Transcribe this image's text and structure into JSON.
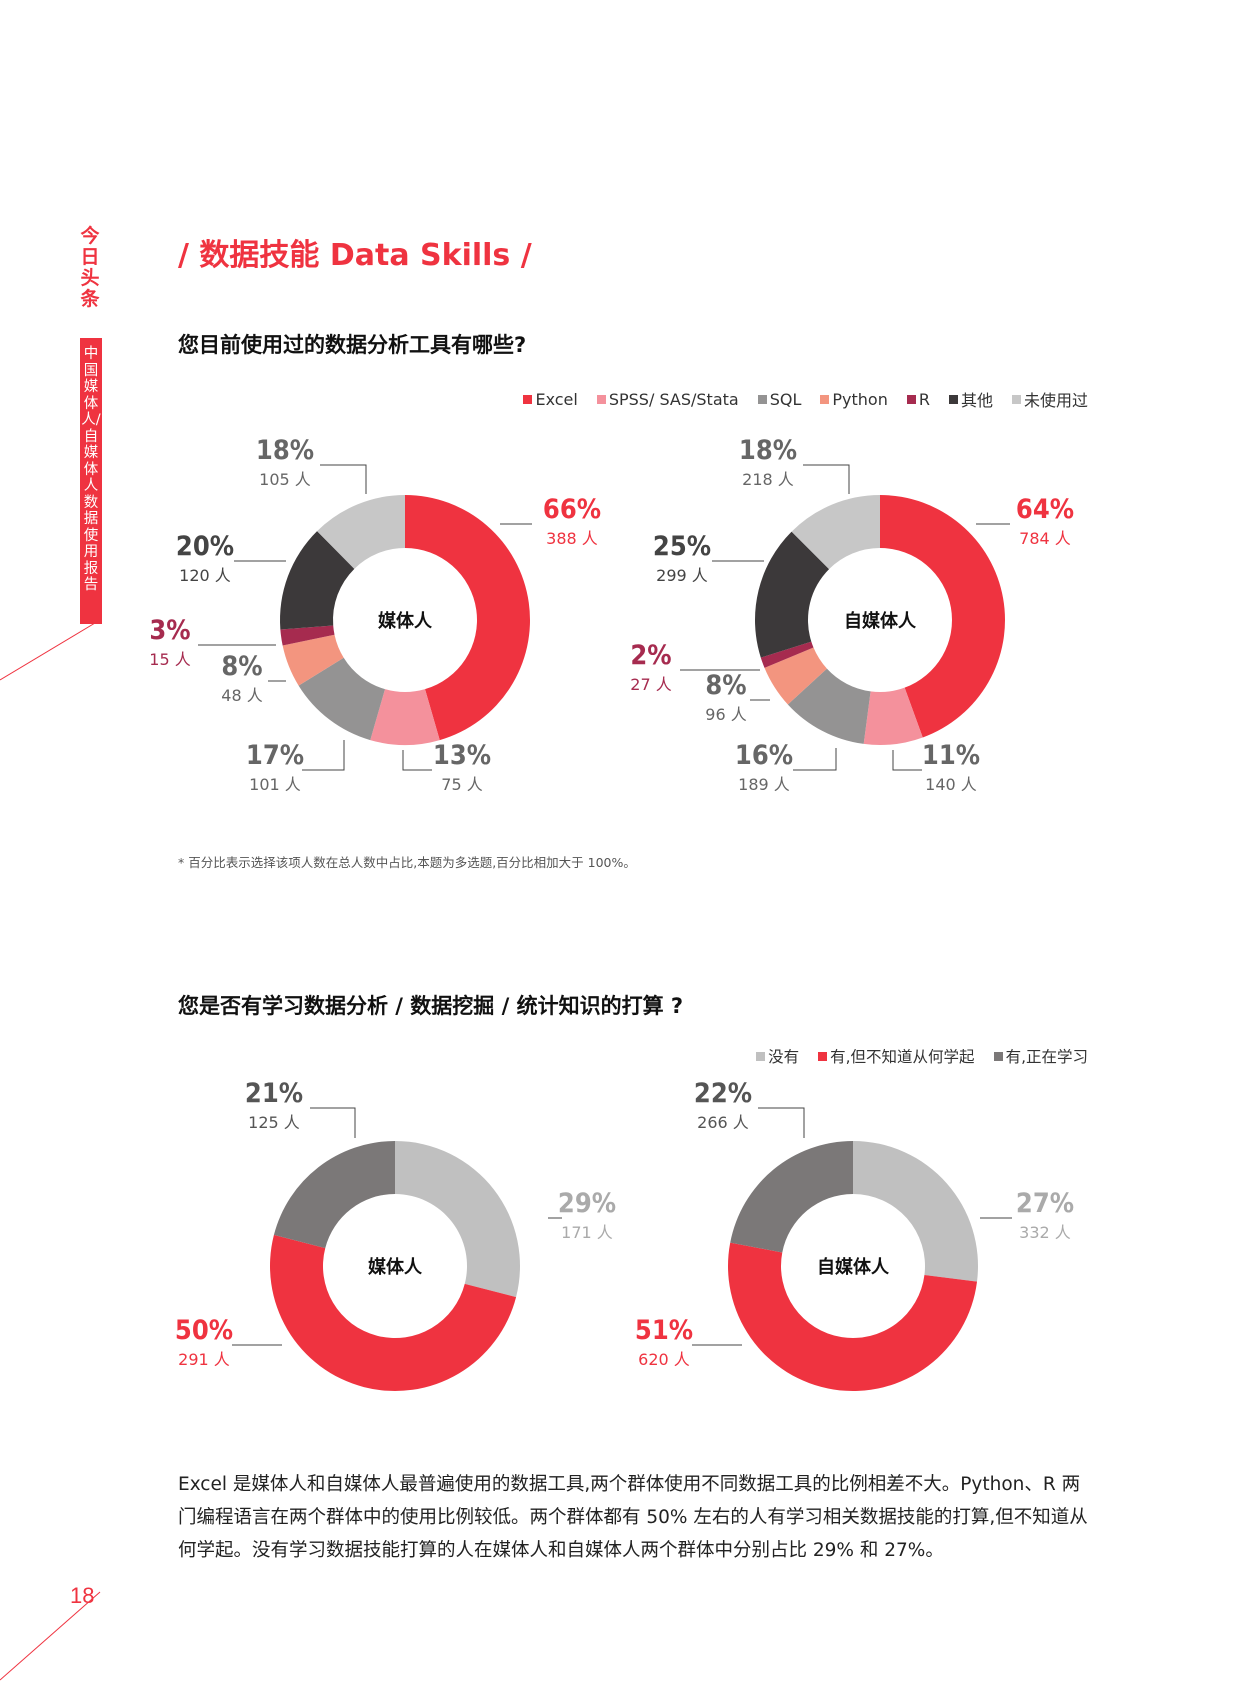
{
  "sidebar": {
    "brand": "今日头条",
    "subtitle": "中国媒体人/自媒体人数据使用报告"
  },
  "page_number": "18",
  "section_title": "/ 数据技能 Data Skills /",
  "colors": {
    "accent": "#ef3340"
  },
  "q1": {
    "title": "您目前使用过的数据分析工具有哪些?",
    "legend": [
      {
        "label": "Excel",
        "color": "#ef3340"
      },
      {
        "label": "SPSS/ SAS/Stata",
        "color": "#f4919c"
      },
      {
        "label": "SQL",
        "color": "#949393"
      },
      {
        "label": "Python",
        "color": "#f3957f"
      },
      {
        "label": "R",
        "color": "#a62b4f"
      },
      {
        "label": "其他",
        "color": "#3c393a"
      },
      {
        "label": "未使用过",
        "color": "#c7c7c7"
      }
    ],
    "footnote": "* 百分比表示选择该项人数在总人数中占比,本题为多选题,百分比相加大于 100%。"
  },
  "q2": {
    "title": "您是否有学习数据分析 / 数据挖掘 / 统计知识的打算 ?",
    "legend": [
      {
        "label": "没有",
        "color": "#c0c0c0"
      },
      {
        "label": "有,但不知道从何学起",
        "color": "#ef3340"
      },
      {
        "label": "有,正在学习",
        "color": "#7b7878"
      }
    ]
  },
  "chart_data": [
    {
      "type": "pie",
      "subtype": "donut",
      "center_label": "媒体人",
      "slices": [
        {
          "name": "Excel",
          "value": 66,
          "count": "388 人",
          "color": "#ef3340",
          "label_color": "#ef3340"
        },
        {
          "name": "SPSS/ SAS/Stata",
          "value": 13,
          "count": "75 人",
          "color": "#f4919c",
          "label_color": "#666666"
        },
        {
          "name": "SQL",
          "value": 17,
          "count": "101 人",
          "color": "#949393",
          "label_color": "#666666"
        },
        {
          "name": "Python",
          "value": 8,
          "count": "48 人",
          "color": "#f3957f",
          "label_color": "#666666"
        },
        {
          "name": "R",
          "value": 3,
          "count": "15 人",
          "color": "#a62b4f",
          "label_color": "#a62b4f"
        },
        {
          "name": "其他",
          "value": 20,
          "count": "120 人",
          "color": "#3c393a",
          "label_color": "#444444"
        },
        {
          "name": "未使用过",
          "value": 18,
          "count": "105 人",
          "color": "#c7c7c7",
          "label_color": "#666666"
        }
      ]
    },
    {
      "type": "pie",
      "subtype": "donut",
      "center_label": "自媒体人",
      "slices": [
        {
          "name": "Excel",
          "value": 64,
          "count": "784 人",
          "color": "#ef3340",
          "label_color": "#ef3340"
        },
        {
          "name": "SPSS/ SAS/Stata",
          "value": 11,
          "count": "140 人",
          "color": "#f4919c",
          "label_color": "#666666"
        },
        {
          "name": "SQL",
          "value": 16,
          "count": "189 人",
          "color": "#949393",
          "label_color": "#666666"
        },
        {
          "name": "Python",
          "value": 8,
          "count": "96 人",
          "color": "#f3957f",
          "label_color": "#666666"
        },
        {
          "name": "R",
          "value": 2,
          "count": "27 人",
          "color": "#a62b4f",
          "label_color": "#a62b4f"
        },
        {
          "name": "其他",
          "value": 25,
          "count": "299 人",
          "color": "#3c393a",
          "label_color": "#444444"
        },
        {
          "name": "未使用过",
          "value": 18,
          "count": "218 人",
          "color": "#c7c7c7",
          "label_color": "#666666"
        }
      ]
    },
    {
      "type": "pie",
      "subtype": "donut",
      "center_label": "媒体人",
      "slices": [
        {
          "name": "没有",
          "value": 29,
          "count": "171 人",
          "color": "#c0c0c0",
          "label_color": "#aaaaaa"
        },
        {
          "name": "有,但不知道从何学起",
          "value": 50,
          "count": "291 人",
          "color": "#ef3340",
          "label_color": "#ef3340"
        },
        {
          "name": "有,正在学习",
          "value": 21,
          "count": "125 人",
          "color": "#7b7878",
          "label_color": "#555555"
        }
      ]
    },
    {
      "type": "pie",
      "subtype": "donut",
      "center_label": "自媒体人",
      "slices": [
        {
          "name": "没有",
          "value": 27,
          "count": "332 人",
          "color": "#c0c0c0",
          "label_color": "#aaaaaa"
        },
        {
          "name": "有,但不知道从何学起",
          "value": 51,
          "count": "620 人",
          "color": "#ef3340",
          "label_color": "#ef3340"
        },
        {
          "name": "有,正在学习",
          "value": 22,
          "count": "266 人",
          "color": "#7b7878",
          "label_color": "#555555"
        }
      ]
    }
  ],
  "summary": "Excel 是媒体人和自媒体人最普遍使用的数据工具,两个群体使用不同数据工具的比例相差不大。Python、R 两门编程语言在两个群体中的使用比例较低。两个群体都有 50% 左右的人有学习相关数据技能的打算,但不知道从何学起。没有学习数据技能打算的人在媒体人和自媒体人两个群体中分别占比 29% 和 27%。"
}
